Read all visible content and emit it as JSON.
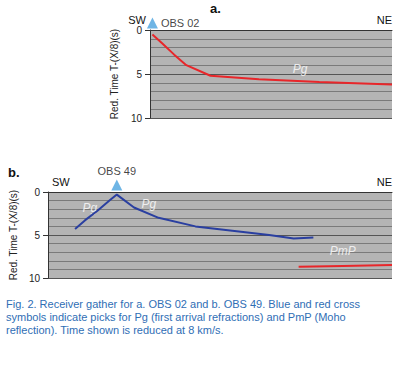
{
  "caption": "Fig. 2. Receiver gather for a. OBS 02 and b. OBS 49. Blue and red cross symbols indicate picks for Pg (first arrival refractions) and PmP (Moho reflection). Time shown is reduced at 8 km/s.",
  "chart_data": [
    {
      "type": "line",
      "panel": "a.",
      "direction_left": "SW",
      "direction_right": "NE",
      "station": "OBS 02",
      "station_x": 1,
      "y_label": "Red. Time T-(X/8)(s)",
      "xlim": [
        0,
        100
      ],
      "ylim": [
        0,
        10
      ],
      "yticks": [
        0,
        5,
        10
      ],
      "grid": true,
      "tick_labels": "y",
      "series": [
        {
          "color": "#e8262a",
          "x": [
            1,
            5,
            10,
            15,
            25,
            35,
            45,
            70,
            100
          ],
          "values": [
            0.5,
            1.5,
            2.8,
            4.0,
            5.2,
            5.4,
            5.6,
            5.9,
            6.2
          ]
        }
      ],
      "annotations": [
        {
          "text": "Pg",
          "x": 62,
          "y": 4.4
        }
      ]
    },
    {
      "type": "line",
      "panel": "b.",
      "direction_left": "SW",
      "direction_right": "NE",
      "station": "OBS 49",
      "station_x": 28,
      "y_label": "Red. Time T-(X/8)(s)",
      "xlim": [
        0,
        140
      ],
      "ylim": [
        0,
        10
      ],
      "yticks": [
        0,
        5,
        10
      ],
      "grid": true,
      "tick_labels": "y",
      "series": [
        {
          "color": "#2a3fa0",
          "x": [
            11,
            15,
            20,
            25,
            28,
            35,
            45,
            60,
            75,
            90,
            100,
            108
          ],
          "values": [
            4.3,
            3.3,
            2.2,
            1.0,
            0.3,
            1.8,
            3.0,
            4.0,
            4.5,
            5.0,
            5.4,
            5.3
          ]
        },
        {
          "color": "#e8262a",
          "x": [
            102,
            120,
            140
          ],
          "values": [
            8.7,
            8.6,
            8.5
          ]
        }
      ],
      "annotations": [
        {
          "text": "Pg",
          "x": 17,
          "y": 1.9
        },
        {
          "text": "Pg",
          "x": 41,
          "y": 1.4
        },
        {
          "text": "PmP",
          "x": 120,
          "y": 6.9
        }
      ]
    }
  ]
}
